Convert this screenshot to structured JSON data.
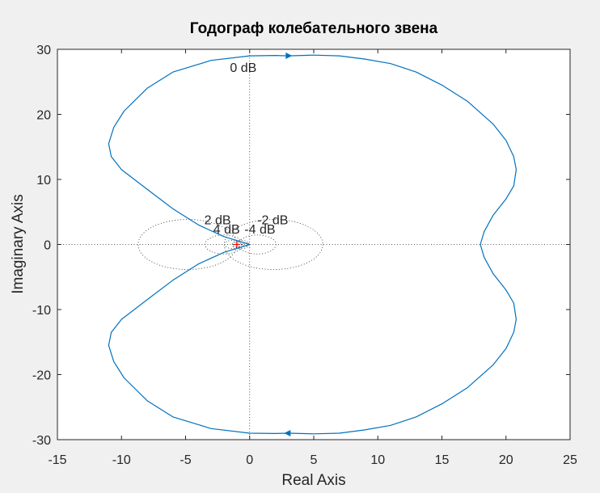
{
  "colors": {
    "figure_background": "#f0f0f0",
    "axes_background": "#ffffff",
    "curve": "#0072bd",
    "grid": "#262626",
    "critical_point": "#ff0000"
  },
  "chart_data": {
    "type": "line",
    "title": "Годограф колебательного звена",
    "xlabel": "Real Axis",
    "ylabel": "Imaginary Axis",
    "xlim": [
      -15,
      25
    ],
    "ylim": [
      -30,
      30
    ],
    "xticks": [
      -15,
      -10,
      -5,
      0,
      5,
      10,
      15,
      20,
      25
    ],
    "xtick_labels": [
      "-15",
      "-10",
      "-5",
      "0",
      "5",
      "10",
      "15",
      "20",
      "25"
    ],
    "yticks": [
      -30,
      -20,
      -10,
      0,
      10,
      20,
      30
    ],
    "ytick_labels": [
      "-30",
      "-20",
      "-10",
      "0",
      "10",
      "20",
      "30"
    ],
    "grid": "nyquist grid (dotted M-circles)",
    "critical_point": [
      -1,
      0
    ],
    "series": [
      {
        "x": [
          0.0,
          -2.0,
          -4.0,
          -6.0,
          -8.0,
          -10.0,
          -10.8,
          -11.0,
          -10.6,
          -9.8,
          -8.0,
          -6.0,
          -3.0,
          0.0,
          2.0,
          3.0,
          5.0,
          7.0,
          9.0,
          11.0,
          13.0,
          15.0,
          17.0,
          19.0,
          20.0,
          20.6,
          20.8,
          20.6,
          20.0,
          19.0,
          18.3,
          18.0
        ],
        "y": [
          0.0,
          1.2,
          3.0,
          5.5,
          8.5,
          11.5,
          13.5,
          15.5,
          18.0,
          20.5,
          24.0,
          26.5,
          28.3,
          29.0,
          29.05,
          29.0,
          29.1,
          29.0,
          28.5,
          27.8,
          26.5,
          24.5,
          22.0,
          18.5,
          16.0,
          13.5,
          11.5,
          9.0,
          7.0,
          4.5,
          2.0,
          0.0
        ],
        "mirror": true,
        "arrows": [
          [
            3.0,
            29.0,
            "right"
          ],
          [
            3.0,
            -29.0,
            "left"
          ]
        ]
      }
    ],
    "annotations": [
      {
        "text": "0 dB",
        "x": -0.5,
        "y": 26.5
      },
      {
        "text": "2 dB",
        "x": -2.5,
        "y": 3.1
      },
      {
        "text": "-2 dB",
        "x": 1.8,
        "y": 3.1
      },
      {
        "text": "4 dB",
        "x": -1.8,
        "y": 1.7
      },
      {
        "text": "-4 dB",
        "x": 0.8,
        "y": 1.7
      }
    ],
    "m_circles": [
      {
        "cx": -4.85,
        "cy": 0,
        "r": 3.85
      },
      {
        "cx": 1.86,
        "cy": 0,
        "r": 3.85
      },
      {
        "cx": -2.02,
        "cy": 0,
        "r": 1.46
      },
      {
        "cx": 0.59,
        "cy": 0,
        "r": 1.46
      },
      {
        "cx": -1.3,
        "cy": 0,
        "r": 0.65
      },
      {
        "cx": -0.7,
        "cy": 0,
        "r": 0.65
      },
      {
        "cx": -1.0,
        "cy": 0,
        "r": 0.35
      },
      {
        "cx": -0.3,
        "cy": 0,
        "r": 0.25
      }
    ]
  }
}
